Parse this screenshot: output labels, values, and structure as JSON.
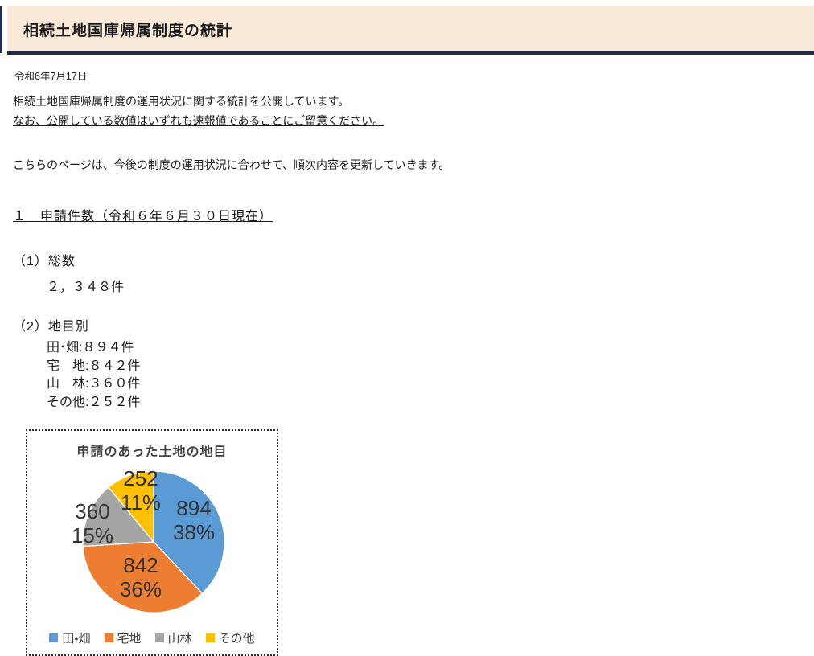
{
  "header": {
    "title": "相続土地国庫帰属制度の統計",
    "accent_color": "#222a4e",
    "bg_color": "#fbe9d9"
  },
  "meta": {
    "date": "令和6年7月17日"
  },
  "intro": {
    "line1": "相続土地国庫帰属制度の運用状況に関する統計を公開しています。",
    "line2": "なお、公開している数値はいずれも速報値であることにご留意ください。",
    "update_note": "こちらのページは、今後の制度の運用状況に合わせて、順次内容を更新していきます。"
  },
  "section1": {
    "heading": "１　申請件数（令和６年６月３０日現在）",
    "total": {
      "label": "（1）総数",
      "value": "２，３４８件"
    },
    "by_type": {
      "label": "（2）地目別",
      "items": [
        "田･畑:８９４件",
        "宅　地:８４２件",
        "山　林:３６０件",
        "その他:２５２件"
      ]
    }
  },
  "chart_data": {
    "type": "pie",
    "title": "申請のあった土地の地目",
    "legend_position": "bottom",
    "direction": "clockwise",
    "start_angle_deg": 0,
    "slices": [
      {
        "label": "田・畑",
        "value": 894,
        "value_label": "894",
        "pct": 38,
        "pct_label": "38%",
        "color": "#5B9BD5"
      },
      {
        "label": "宅地",
        "value": 842,
        "value_label": "842",
        "pct": 36,
        "pct_label": "36%",
        "color": "#ED7D31"
      },
      {
        "label": "山林",
        "value": 360,
        "value_label": "360",
        "pct": 15,
        "pct_label": "15%",
        "color": "#A5A5A5"
      },
      {
        "label": "その他",
        "value": 252,
        "value_label": "252",
        "pct": 11,
        "pct_label": "11%",
        "color": "#FFC000"
      }
    ]
  }
}
